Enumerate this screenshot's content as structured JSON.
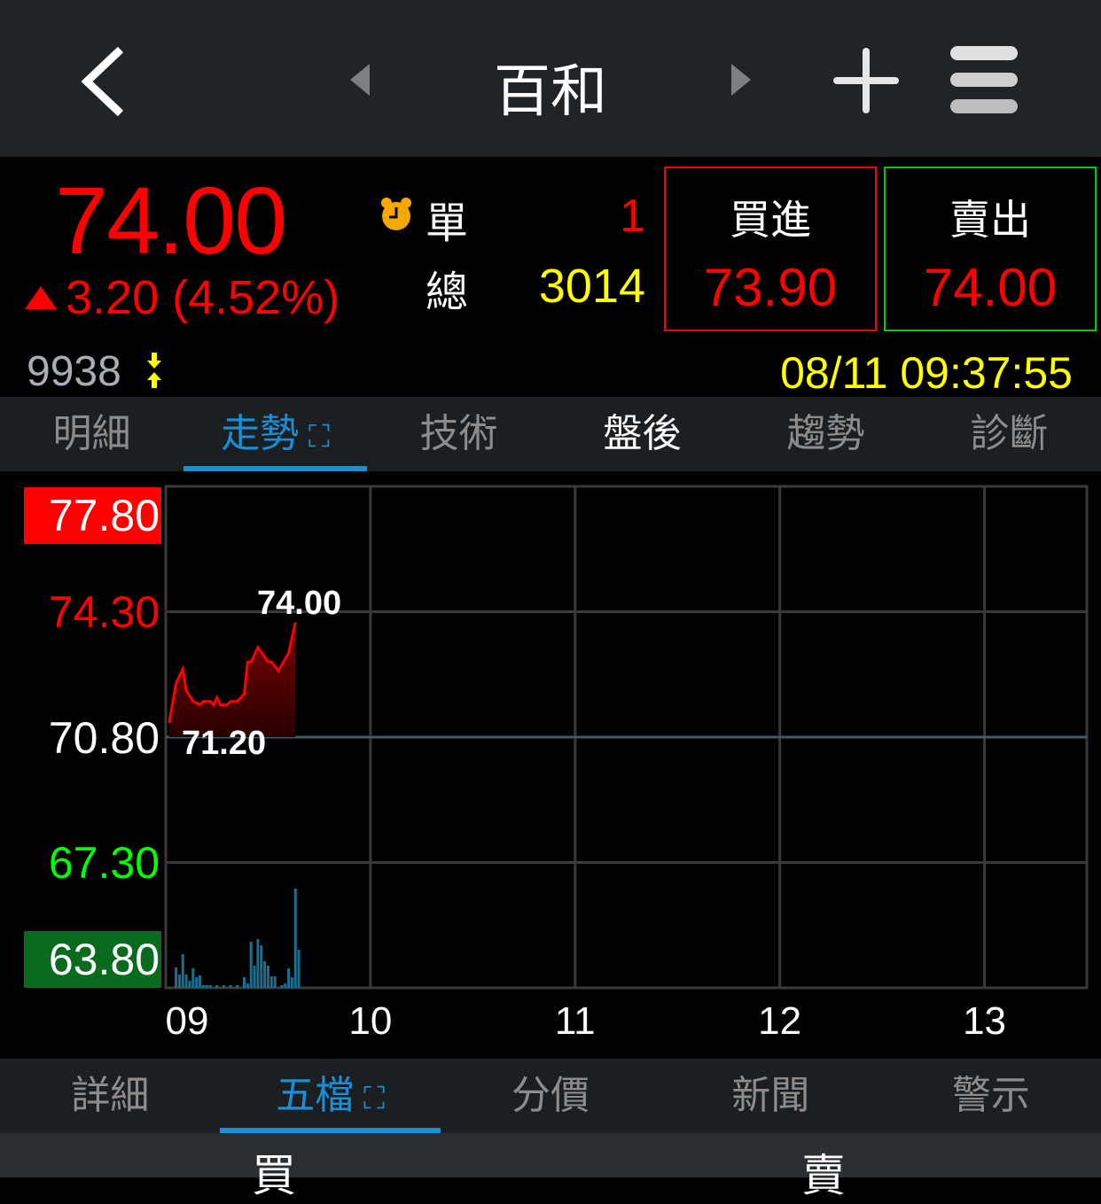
{
  "header": {
    "title": "百和",
    "back_icon": "chevron-left-icon",
    "prev_icon": "triangle-left-icon",
    "next_icon": "triangle-right-icon",
    "add_icon": "plus-icon",
    "menu_icon": "hamburger-menu-icon"
  },
  "quote": {
    "price": "74.00",
    "change": "3.20 (4.52%)",
    "direction": "up",
    "code": "9938",
    "single_label": "單",
    "single_value": "1",
    "total_label": "總",
    "total_value": "3014",
    "bid_label": "買進",
    "bid_value": "73.90",
    "ask_label": "賣出",
    "ask_value": "74.00",
    "datetime": "08/11 09:37:55",
    "colors": {
      "up": "#ff0000",
      "volume": "#ffff00",
      "bid_border": "#ff0000",
      "ask_border": "#00cc00"
    }
  },
  "tabs_top": [
    {
      "label": "明細"
    },
    {
      "label": "走勢",
      "active": true,
      "expand_icon": "expand-icon"
    },
    {
      "label": "技術"
    },
    {
      "label": "盤後",
      "highlight": true
    },
    {
      "label": "趨勢"
    },
    {
      "label": "診斷"
    }
  ],
  "tabs_bottom": [
    {
      "label": "詳細"
    },
    {
      "label": "五檔",
      "active": true,
      "expand_icon": "expand-icon"
    },
    {
      "label": "分價"
    },
    {
      "label": "新聞"
    },
    {
      "label": "警示"
    }
  ],
  "bottom_headers": {
    "buy": "買",
    "sell": "賣"
  },
  "chart_data": {
    "type": "line",
    "y_ticks": [
      "77.80",
      "74.30",
      "70.80",
      "67.30",
      "63.80"
    ],
    "ylim": [
      63.8,
      77.8
    ],
    "reference": 70.8,
    "x_ticks": [
      "09",
      "10",
      "11",
      "12",
      "13"
    ],
    "xlim": [
      "09:00",
      "13:30"
    ],
    "high_label": "74.00",
    "low_label": "71.20",
    "grid": true,
    "price": [
      [
        "09:01",
        71.2
      ],
      [
        "09:03",
        72.3
      ],
      [
        "09:05",
        72.7
      ],
      [
        "09:06",
        72.1
      ],
      [
        "09:08",
        71.8
      ],
      [
        "09:10",
        71.7
      ],
      [
        "09:11",
        71.8
      ],
      [
        "09:13",
        71.8
      ],
      [
        "09:14",
        71.7
      ],
      [
        "09:15",
        71.9
      ],
      [
        "09:16",
        71.7
      ],
      [
        "09:18",
        71.7
      ],
      [
        "09:19",
        71.8
      ],
      [
        "09:21",
        71.8
      ],
      [
        "09:23",
        72.0
      ],
      [
        "09:24",
        72.9
      ],
      [
        "09:25",
        72.9
      ],
      [
        "09:27",
        73.3
      ],
      [
        "09:30",
        72.9
      ],
      [
        "09:31",
        72.9
      ],
      [
        "09:33",
        72.65
      ],
      [
        "09:36",
        73.15
      ],
      [
        "09:38",
        74.0
      ]
    ],
    "volume": [
      [
        "09:03",
        23
      ],
      [
        "09:04",
        15
      ],
      [
        "09:05",
        38
      ],
      [
        "09:06",
        15
      ],
      [
        "09:07",
        8
      ],
      [
        "09:08",
        22
      ],
      [
        "09:09",
        12
      ],
      [
        "09:10",
        14
      ],
      [
        "09:11",
        3
      ],
      [
        "09:12",
        3
      ],
      [
        "09:13",
        3
      ],
      [
        "09:15",
        3
      ],
      [
        "09:17",
        3
      ],
      [
        "09:19",
        3
      ],
      [
        "09:21",
        3
      ],
      [
        "09:23",
        12
      ],
      [
        "09:24",
        5
      ],
      [
        "09:25",
        52
      ],
      [
        "09:26",
        25
      ],
      [
        "09:27",
        55
      ],
      [
        "09:28",
        48
      ],
      [
        "09:29",
        30
      ],
      [
        "09:30",
        25
      ],
      [
        "09:31",
        13
      ],
      [
        "09:32",
        13
      ],
      [
        "09:34",
        3
      ],
      [
        "09:35",
        5
      ],
      [
        "09:36",
        22
      ],
      [
        "09:37",
        12
      ],
      [
        "09:38",
        112
      ],
      [
        "09:39",
        43
      ]
    ],
    "colors": {
      "line": "#ff0000",
      "volume": "#1a6f8f",
      "up": "#ff0000",
      "down": "#00ff00"
    }
  }
}
